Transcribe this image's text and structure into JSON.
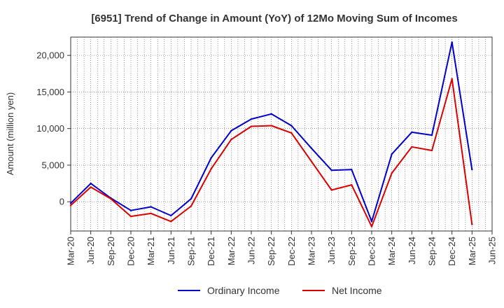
{
  "chart_data": {
    "type": "line",
    "title": "[6951]  Trend of Change in Amount (YoY) of 12Mo Moving Sum of Incomes",
    "xlabel": "",
    "ylabel": "Amount (million yen)",
    "ylim": [
      -4000,
      22500
    ],
    "yticks": [
      0,
      5000,
      10000,
      15000,
      20000
    ],
    "ytick_labels": [
      "0",
      "5,000",
      "10,000",
      "15,000",
      "20,000"
    ],
    "grid": true,
    "legend_position": "bottom-center",
    "x": [
      "Mar-20",
      "Jun-20",
      "Sep-20",
      "Dec-20",
      "Mar-21",
      "Jun-21",
      "Sep-21",
      "Dec-21",
      "Mar-22",
      "Jun-22",
      "Sep-22",
      "Dec-22",
      "Mar-23",
      "Jun-23",
      "Sep-23",
      "Dec-23",
      "Mar-24",
      "Jun-24",
      "Sep-24",
      "Dec-24",
      "Mar-25",
      "Jun-25"
    ],
    "xtick_labels": [
      "Mar-20",
      "Jun-20",
      "Sep-20",
      "Dec-20",
      "Mar-21",
      "Jun-21",
      "Sep-21",
      "Dec-21",
      "Mar-22",
      "Jun-22",
      "Sep-22",
      "Dec-22",
      "Mar-23",
      "Jun-23",
      "Sep-23",
      "Dec-23",
      "Mar-24",
      "Jun-24",
      "Sep-24",
      "Dec-24",
      "Mar-25",
      "Jun-25"
    ],
    "series": [
      {
        "name": "Ordinary Income",
        "color": "#0000cc",
        "values": [
          -200,
          2500,
          500,
          -1200,
          -700,
          -1900,
          400,
          6000,
          9700,
          11300,
          12000,
          10400,
          7300,
          4300,
          4400,
          -2700,
          6500,
          9500,
          9100,
          21800,
          4400,
          null
        ]
      },
      {
        "name": "Net Income",
        "color": "#dd0000",
        "values": [
          -500,
          2000,
          400,
          -2000,
          -1600,
          -2700,
          -600,
          4500,
          8500,
          10300,
          10400,
          9400,
          5500,
          1600,
          2300,
          -3400,
          3900,
          7500,
          7000,
          16800,
          -3100,
          null
        ]
      }
    ]
  }
}
